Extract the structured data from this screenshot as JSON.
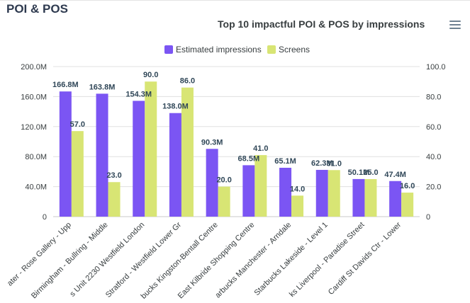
{
  "page": {
    "title": "POI & POS"
  },
  "toolbar": {
    "menu_icon": "hamburger-menu-icon"
  },
  "colors": {
    "impressions": "#7b55f3",
    "screens": "#d8e574",
    "grid": "#e0e0e0",
    "text": "#373d3f"
  },
  "chart_data": {
    "type": "bar",
    "title": "Top 10 impactful POI & POS by impressions",
    "legend_position": "top",
    "grid": true,
    "categories": [
      "ater - Rose Gallery - Upp",
      "Birmingham - Bullring - Middle",
      "s Unit 2230 Westfield London",
      "Stratford - Westfield Lower Gr",
      "bucks Kingston-Bentall Centre",
      "East Kilbride Shopping Centre",
      "arbucks Manchester - Arndale",
      "Starbucks Lakeside - Level 1",
      "ks Liverpool - Paradise Street",
      "Cardiff St Davids Ctr - Lower"
    ],
    "series": [
      {
        "name": "Estimated impressions",
        "axis": "left",
        "values": [
          166.8,
          163.8,
          154.3,
          138.0,
          90.3,
          68.5,
          65.1,
          62.3,
          50.1,
          47.4
        ],
        "labels": [
          "166.8M",
          "163.8M",
          "154.3M",
          "138.0M",
          "90.3M",
          "68.5M",
          "65.1M",
          "62.3M",
          "50.1M",
          "47.4M"
        ]
      },
      {
        "name": "Screens",
        "axis": "right",
        "values": [
          57,
          23,
          90,
          86,
          20,
          41,
          14,
          31,
          25,
          16
        ],
        "labels": [
          "57.0",
          "23.0",
          "90.0",
          "86.0",
          "20.0",
          "41.0",
          "14.0",
          "31.0",
          "25.0",
          "16.0"
        ]
      }
    ],
    "y_left": {
      "ylim": [
        0,
        200
      ],
      "ticks": [
        "0",
        "40.0M",
        "80.0M",
        "120.0M",
        "160.0M",
        "200.0M"
      ],
      "unit": "M"
    },
    "y_right": {
      "ylim": [
        0,
        100
      ],
      "ticks": [
        "0",
        "20.0",
        "40.0",
        "60.0",
        "80.0",
        "100.0"
      ]
    }
  }
}
